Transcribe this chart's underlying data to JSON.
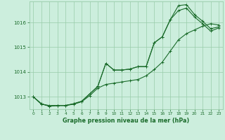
{
  "title": "Graphe pression niveau de la mer (hPa)",
  "bg_color": "#cceedd",
  "grid_color": "#99ccaa",
  "line_color": "#1a6b2a",
  "xlim": [
    -0.5,
    23.5
  ],
  "ylim": [
    1012.5,
    1016.85
  ],
  "yticks": [
    1013,
    1014,
    1015,
    1016
  ],
  "xticks": [
    0,
    1,
    2,
    3,
    4,
    5,
    6,
    7,
    8,
    9,
    10,
    11,
    12,
    13,
    14,
    15,
    16,
    17,
    18,
    19,
    20,
    21,
    22,
    23
  ],
  "line1_x": [
    0,
    1,
    2,
    3,
    4,
    5,
    6,
    7,
    8,
    9,
    10,
    11,
    12,
    13,
    14,
    15,
    16,
    17,
    18,
    19,
    20,
    21,
    22,
    23
  ],
  "line1_y": [
    1013.0,
    1012.7,
    1012.65,
    1012.65,
    1012.65,
    1012.7,
    1012.8,
    1013.05,
    1013.35,
    1013.5,
    1013.55,
    1013.6,
    1013.65,
    1013.7,
    1013.85,
    1014.1,
    1014.4,
    1014.85,
    1015.3,
    1015.55,
    1015.7,
    1015.85,
    1015.95,
    1015.9
  ],
  "line2_x": [
    0,
    1,
    2,
    3,
    4,
    5,
    6,
    7,
    8,
    9,
    10,
    11,
    12,
    13,
    14,
    15,
    16,
    17,
    18,
    19,
    20,
    21,
    22,
    23
  ],
  "line2_y": [
    1013.0,
    1012.72,
    1012.62,
    1012.65,
    1012.65,
    1012.72,
    1012.82,
    1013.12,
    1013.42,
    1014.35,
    1014.08,
    1014.08,
    1014.12,
    1014.22,
    1014.22,
    1015.18,
    1015.42,
    1016.12,
    1016.48,
    1016.58,
    1016.22,
    1015.95,
    1015.65,
    1015.78
  ],
  "line3_x": [
    0,
    1,
    2,
    3,
    4,
    5,
    6,
    7,
    8,
    9,
    10,
    11,
    12,
    13,
    14,
    15,
    16,
    17,
    18,
    19,
    20,
    21,
    22,
    23
  ],
  "line3_y": [
    1013.0,
    1012.72,
    1012.62,
    1012.65,
    1012.65,
    1012.72,
    1012.82,
    1013.12,
    1013.42,
    1014.35,
    1014.08,
    1014.08,
    1014.12,
    1014.22,
    1014.22,
    1015.18,
    1015.42,
    1016.12,
    1016.68,
    1016.72,
    1016.32,
    1016.05,
    1015.75,
    1015.82
  ]
}
